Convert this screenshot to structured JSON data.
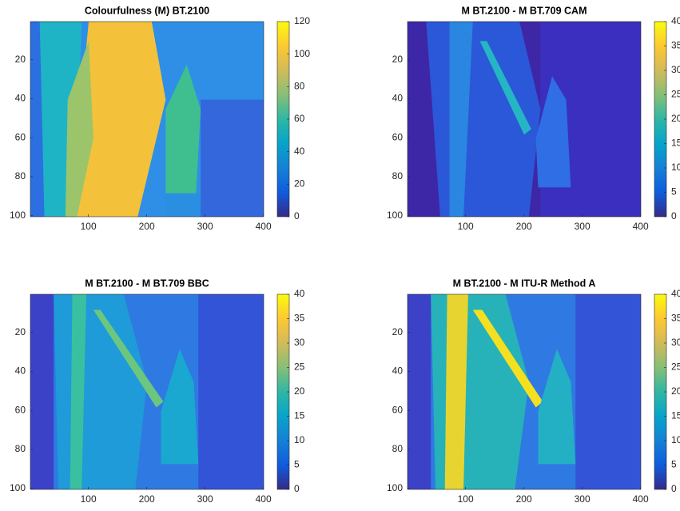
{
  "chart_data": [
    {
      "type": "heatmap",
      "title": "Colourfulness (M) BT.2100",
      "xlim": [
        0.5,
        400.5
      ],
      "xticks": [
        100,
        200,
        300,
        400
      ],
      "ylim": [
        0.5,
        100.5
      ],
      "yticks": [
        20,
        40,
        60,
        80,
        100
      ],
      "colorbar": {
        "lim": [
          0,
          120
        ],
        "ticks": [
          0,
          20,
          40,
          60,
          80,
          100,
          120
        ]
      }
    },
    {
      "type": "heatmap",
      "title": "M BT.2100 - M BT.709 CAM",
      "xlim": [
        0.5,
        400.5
      ],
      "xticks": [
        100,
        200,
        300,
        400
      ],
      "ylim": [
        0.5,
        100.5
      ],
      "yticks": [
        20,
        40,
        60,
        80,
        100
      ],
      "colorbar": {
        "lim": [
          0,
          40
        ],
        "ticks": [
          0,
          5,
          10,
          15,
          20,
          25,
          30,
          35,
          40
        ]
      }
    },
    {
      "type": "heatmap",
      "title": "M BT.2100 - M BT.709 BBC",
      "xlim": [
        0.5,
        400.5
      ],
      "xticks": [
        100,
        200,
        300,
        400
      ],
      "ylim": [
        0.5,
        100.5
      ],
      "yticks": [
        20,
        40,
        60,
        80,
        100
      ],
      "colorbar": {
        "lim": [
          0,
          40
        ],
        "ticks": [
          0,
          5,
          10,
          15,
          20,
          25,
          30,
          35,
          40
        ]
      }
    },
    {
      "type": "heatmap",
      "title": "M BT.2100 - M ITU-R Method A",
      "xlim": [
        0.5,
        400.5
      ],
      "xticks": [
        100,
        200,
        300,
        400
      ],
      "ylim": [
        0.5,
        100.5
      ],
      "yticks": [
        20,
        40,
        60,
        80,
        100
      ],
      "colorbar": {
        "lim": [
          0,
          40
        ],
        "ticks": [
          0,
          5,
          10,
          15,
          20,
          25,
          30,
          35,
          40
        ]
      }
    }
  ]
}
